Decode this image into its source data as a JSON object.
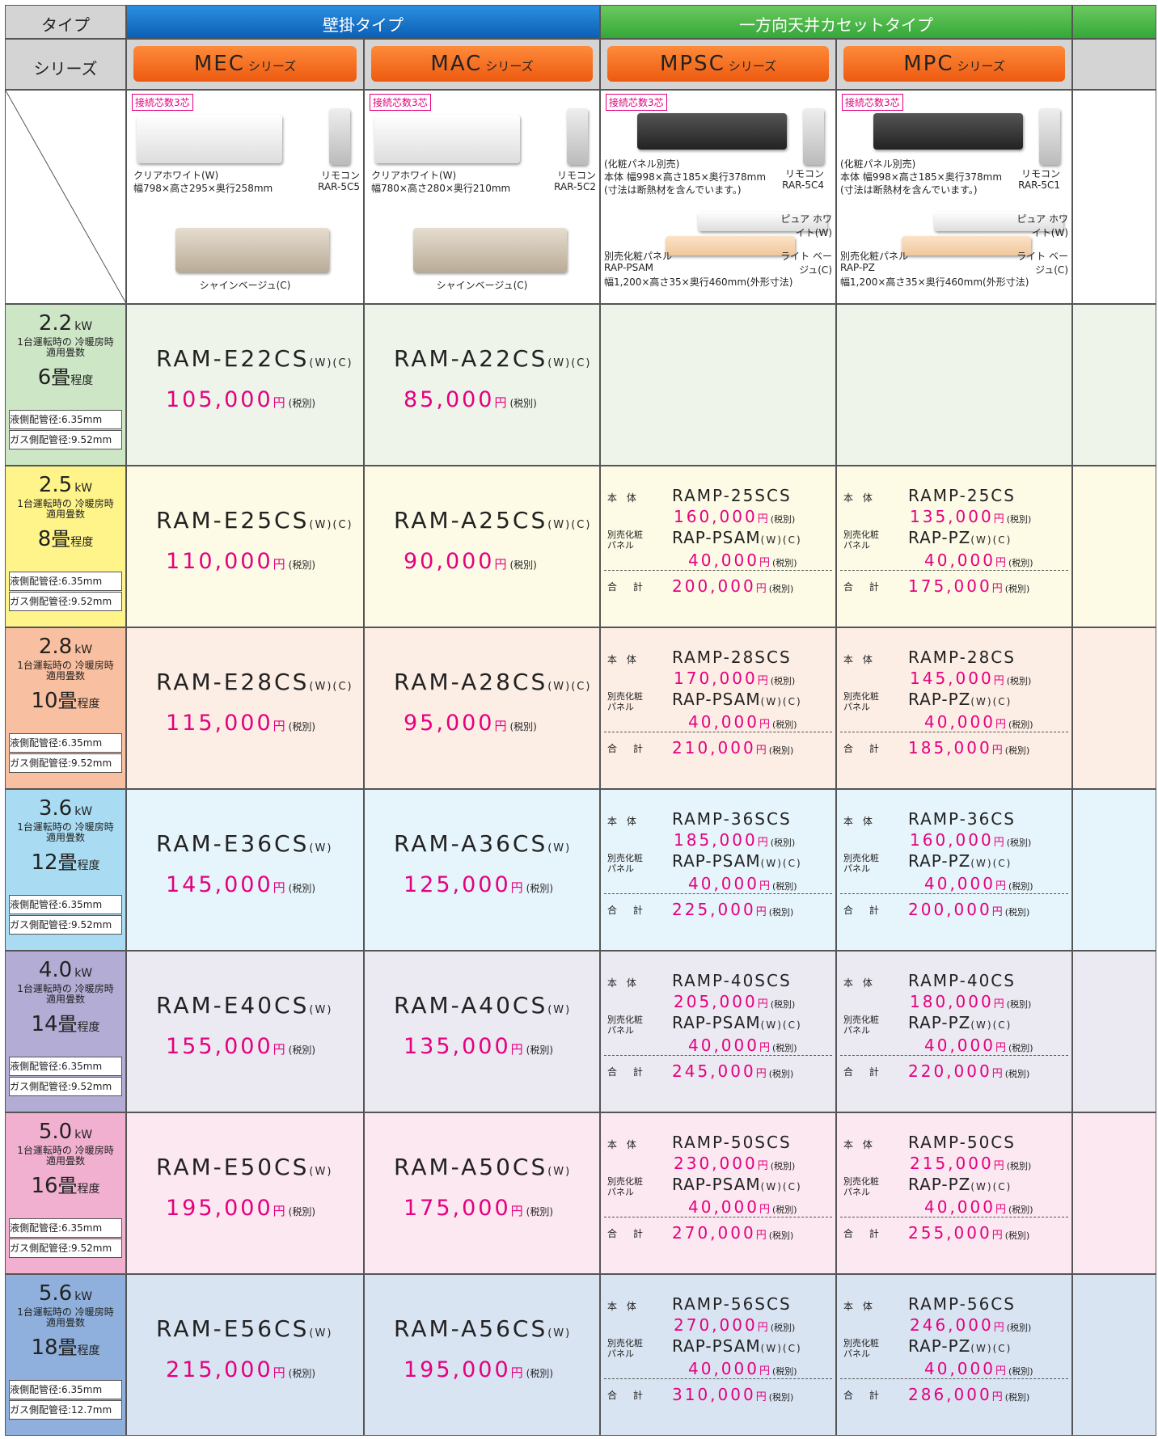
{
  "header": {
    "type_label": "タイプ",
    "series_label": "シリーズ",
    "types": [
      {
        "label": "壁掛タイプ"
      },
      {
        "label": "一方向天井カセットタイプ"
      }
    ],
    "series": [
      {
        "name": "MEC",
        "suffix": "シリーズ"
      },
      {
        "name": "MAC",
        "suffix": "シリーズ"
      },
      {
        "name": "MPSC",
        "suffix": "シリーズ"
      },
      {
        "name": "MPC",
        "suffix": "シリーズ"
      }
    ]
  },
  "labels": {
    "yen": "円",
    "tax": "(税別)",
    "body": "本 体",
    "panel": "別売化粧 パネル",
    "total": "合 計",
    "kw": "kW",
    "caption": "1台運転時の 冷暖房時適用畳数",
    "tatami": "畳",
    "tatami_suffix": "程度",
    "liquid": "液側配管径:6.35mm"
  },
  "products": [
    {
      "badge": "接続芯数3芯",
      "color1": "クリアホワイト(W)",
      "size": "幅798×高さ295×奥行258mm",
      "remote": "リモコン",
      "remote_model": "RAR-5C5",
      "color2": "シャインベージュ(C)"
    },
    {
      "badge": "接続芯数3芯",
      "color1": "クリアホワイト(W)",
      "size": "幅780×高さ280×奥行210mm",
      "remote": "リモコン",
      "remote_model": "RAR-5C2",
      "color2": "シャインベージュ(C)"
    },
    {
      "badge": "接続芯数3芯",
      "note": "(化粧パネル別売)",
      "size": "本体 幅998×高さ185×奥行378mm",
      "note2": "(寸法は断熱材を含んでいます。)",
      "remote": "リモコン",
      "remote_model": "RAR-5C4",
      "panel_label": "別売化粧パネル",
      "panel_model": "RAP-PSAM",
      "panel_size": "幅1,200×高さ35×奥行460mm(外形寸法)",
      "panel_color1": "ピュア ホワイト(W)",
      "panel_color2": "ライト ベージュ(C)"
    },
    {
      "badge": "接続芯数3芯",
      "note": "(化粧パネル別売)",
      "size": "本体 幅998×高さ185×奥行378mm",
      "note2": "(寸法は断熱材を含んでいます。)",
      "remote": "リモコン",
      "remote_model": "RAR-5C1",
      "panel_label": "別売化粧パネル",
      "panel_model": "RAP-PZ",
      "panel_size": "幅1,200×高さ35×奥行460mm(外形寸法)",
      "panel_color1": "ピュア ホワイト(W)",
      "panel_color2": "ライト ベージュ(C)"
    }
  ],
  "rows": [
    {
      "kw": "2.2",
      "tatami": "6",
      "gas": "ガス側配管径:9.52mm",
      "wall": [
        {
          "model": "RAM-E22CS",
          "variant": "(W)(C)",
          "price": "105,000"
        },
        {
          "model": "RAM-A22CS",
          "variant": "(W)(C)",
          "price": "85,000"
        }
      ],
      "cassette": []
    },
    {
      "kw": "2.5",
      "tatami": "8",
      "gas": "ガス側配管径:9.52mm",
      "wall": [
        {
          "model": "RAM-E25CS",
          "variant": "(W)(C)",
          "price": "110,000"
        },
        {
          "model": "RAM-A25CS",
          "variant": "(W)(C)",
          "price": "90,000"
        }
      ],
      "cassette": [
        {
          "body_model": "RAMP-25SCS",
          "body_price": "160,000",
          "panel_model": "RAP-PSAM",
          "panel_variant": "(W)(C)",
          "panel_price": "40,000",
          "total": "200,000"
        },
        {
          "body_model": "RAMP-25CS",
          "body_price": "135,000",
          "panel_model": "RAP-PZ",
          "panel_variant": "(W)(C)",
          "panel_price": "40,000",
          "total": "175,000"
        }
      ]
    },
    {
      "kw": "2.8",
      "tatami": "10",
      "gas": "ガス側配管径:9.52mm",
      "wall": [
        {
          "model": "RAM-E28CS",
          "variant": "(W)(C)",
          "price": "115,000"
        },
        {
          "model": "RAM-A28CS",
          "variant": "(W)(C)",
          "price": "95,000"
        }
      ],
      "cassette": [
        {
          "body_model": "RAMP-28SCS",
          "body_price": "170,000",
          "panel_model": "RAP-PSAM",
          "panel_variant": "(W)(C)",
          "panel_price": "40,000",
          "total": "210,000"
        },
        {
          "body_model": "RAMP-28CS",
          "body_price": "145,000",
          "panel_model": "RAP-PZ",
          "panel_variant": "(W)(C)",
          "panel_price": "40,000",
          "total": "185,000"
        }
      ]
    },
    {
      "kw": "3.6",
      "tatami": "12",
      "gas": "ガス側配管径:9.52mm",
      "wall": [
        {
          "model": "RAM-E36CS",
          "variant": "(W)",
          "price": "145,000"
        },
        {
          "model": "RAM-A36CS",
          "variant": "(W)",
          "price": "125,000"
        }
      ],
      "cassette": [
        {
          "body_model": "RAMP-36SCS",
          "body_price": "185,000",
          "panel_model": "RAP-PSAM",
          "panel_variant": "(W)(C)",
          "panel_price": "40,000",
          "total": "225,000"
        },
        {
          "body_model": "RAMP-36CS",
          "body_price": "160,000",
          "panel_model": "RAP-PZ",
          "panel_variant": "(W)(C)",
          "panel_price": "40,000",
          "total": "200,000"
        }
      ]
    },
    {
      "kw": "4.0",
      "tatami": "14",
      "gas": "ガス側配管径:9.52mm",
      "wall": [
        {
          "model": "RAM-E40CS",
          "variant": "(W)",
          "price": "155,000"
        },
        {
          "model": "RAM-A40CS",
          "variant": "(W)",
          "price": "135,000"
        }
      ],
      "cassette": [
        {
          "body_model": "RAMP-40SCS",
          "body_price": "205,000",
          "panel_model": "RAP-PSAM",
          "panel_variant": "(W)(C)",
          "panel_price": "40,000",
          "total": "245,000"
        },
        {
          "body_model": "RAMP-40CS",
          "body_price": "180,000",
          "panel_model": "RAP-PZ",
          "panel_variant": "(W)(C)",
          "panel_price": "40,000",
          "total": "220,000"
        }
      ]
    },
    {
      "kw": "5.0",
      "tatami": "16",
      "gas": "ガス側配管径:9.52mm",
      "wall": [
        {
          "model": "RAM-E50CS",
          "variant": "(W)",
          "price": "195,000"
        },
        {
          "model": "RAM-A50CS",
          "variant": "(W)",
          "price": "175,000"
        }
      ],
      "cassette": [
        {
          "body_model": "RAMP-50SCS",
          "body_price": "230,000",
          "panel_model": "RAP-PSAM",
          "panel_variant": "(W)(C)",
          "panel_price": "40,000",
          "total": "270,000"
        },
        {
          "body_model": "RAMP-50CS",
          "body_price": "215,000",
          "panel_model": "RAP-PZ",
          "panel_variant": "(W)(C)",
          "panel_price": "40,000",
          "total": "255,000"
        }
      ]
    },
    {
      "kw": "5.6",
      "tatami": "18",
      "gas": "ガス側配管径:12.7mm",
      "wall": [
        {
          "model": "RAM-E56CS",
          "variant": "(W)",
          "price": "215,000"
        },
        {
          "model": "RAM-A56CS",
          "variant": "(W)",
          "price": "195,000"
        }
      ],
      "cassette": [
        {
          "body_model": "RAMP-56SCS",
          "body_price": "270,000",
          "panel_model": "RAP-PSAM",
          "panel_variant": "(W)(C)",
          "panel_price": "40,000",
          "total": "310,000"
        },
        {
          "body_model": "RAMP-56CS",
          "body_price": "246,000",
          "panel_model": "RAP-PZ",
          "panel_variant": "(W)(C)",
          "panel_price": "40,000",
          "total": "286,000"
        }
      ]
    }
  ]
}
